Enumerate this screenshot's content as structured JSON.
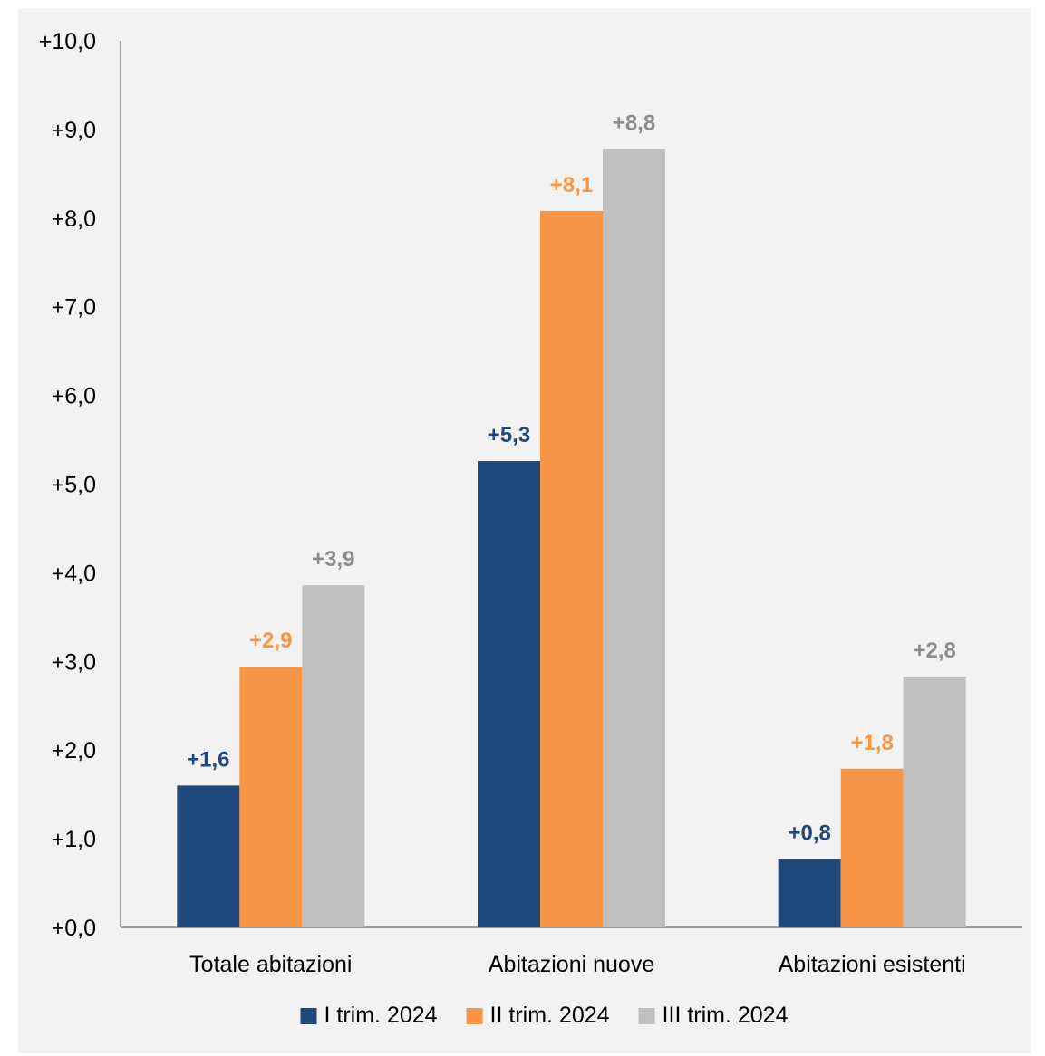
{
  "chart_data": {
    "type": "bar",
    "categories": [
      "Totale abitazioni",
      "Abitazioni nuove",
      "Abitazioni esistenti"
    ],
    "series": [
      {
        "name": "I trim. 2024",
        "color": "#1f497d",
        "values": [
          1.6,
          5.26,
          0.77
        ],
        "labels": [
          "+1,6",
          "+5,3",
          "+0,8"
        ]
      },
      {
        "name": "II trim. 2024",
        "color": "#f79646",
        "values": [
          2.94,
          8.08,
          1.79
        ],
        "labels": [
          "+2,9",
          "+8,1",
          "+1,8"
        ]
      },
      {
        "name": "III trim. 2024",
        "color": "#bfbfbf",
        "values": [
          3.86,
          8.78,
          2.83
        ],
        "labels": [
          "+3,9",
          "+8,8",
          "+2,8"
        ]
      }
    ],
    "ylim": [
      0,
      10
    ],
    "yticks": [
      0,
      1,
      2,
      3,
      4,
      5,
      6,
      7,
      8,
      9,
      10
    ],
    "ytick_labels": [
      "+0,0",
      "+1,0",
      "+2,0",
      "+3,0",
      "+4,0",
      "+5,0",
      "+6,0",
      "+7,0",
      "+8,0",
      "+9,0",
      "+10,0"
    ],
    "label_colors": [
      "#1f497d",
      "#f79646",
      "#8c8c8c"
    ],
    "title": "",
    "xlabel": "",
    "ylabel": "",
    "grid": false,
    "legend_position": "bottom"
  }
}
